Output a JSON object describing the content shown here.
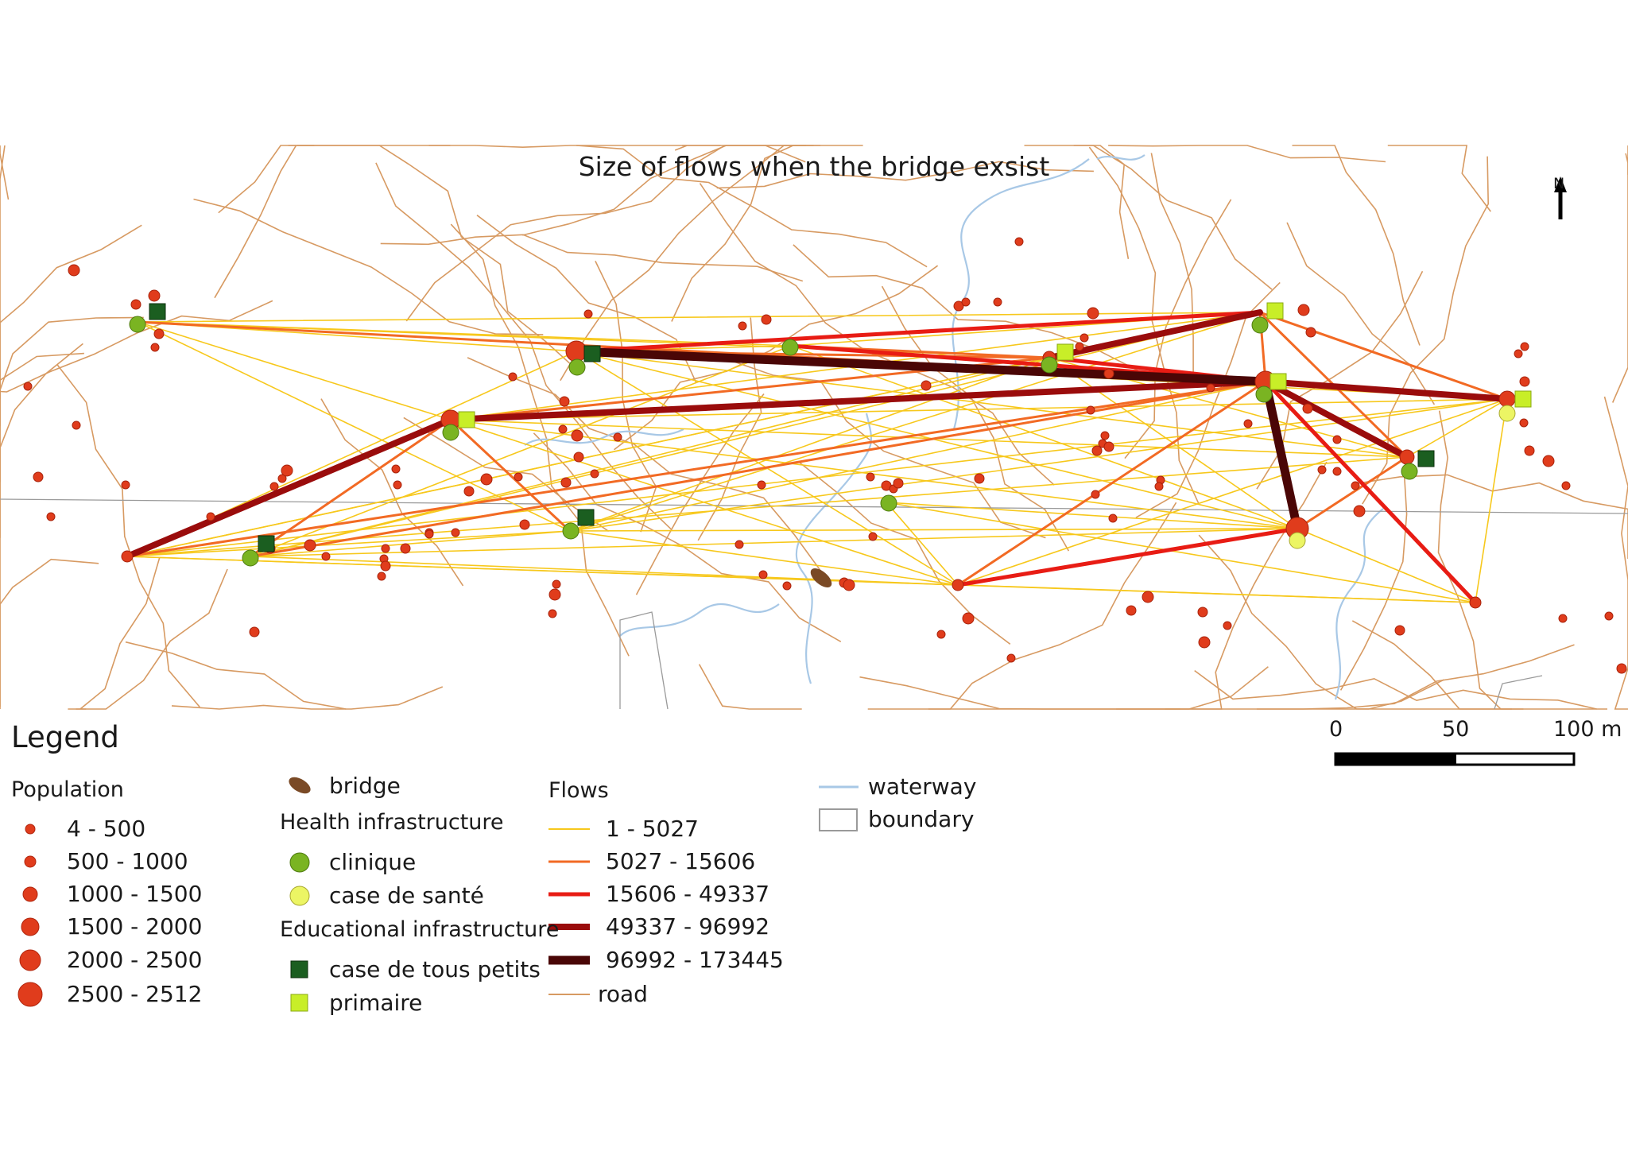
{
  "map_title": "Size of flows when the bridge exsist",
  "north_label": "N",
  "scale_bar": {
    "labels": [
      "0",
      "50",
      "100 m"
    ]
  },
  "legend": {
    "title": "Legend",
    "population": {
      "heading": "Population",
      "classes": [
        "4 - 500",
        "500 - 1000",
        "1000 - 1500",
        "1500 - 2000",
        "2000 - 2500",
        "2500 - 2512"
      ],
      "color": "#e03c1c"
    },
    "bridge": {
      "label": "bridge",
      "color": "#7a4a26"
    },
    "health": {
      "heading": "Health infrastructure",
      "items": [
        {
          "label": "clinique",
          "color": "#7ab422"
        },
        {
          "label": "case de santé",
          "color": "#ecf564"
        }
      ]
    },
    "education": {
      "heading": "Educational infrastructure",
      "items": [
        {
          "label": "case de tous petits",
          "color": "#1b5e20"
        },
        {
          "label": "primaire",
          "color": "#c8ee28"
        }
      ]
    },
    "flows": {
      "heading": "Flows",
      "classes": [
        {
          "label": "1 - 5027",
          "color": "#f7c81c"
        },
        {
          "label": "5027 - 15606",
          "color": "#f26a24"
        },
        {
          "label": "15606 - 49337",
          "color": "#e81c14"
        },
        {
          "label": "49337 - 96992",
          "color": "#9a0c0c"
        },
        {
          "label": "96992 - 173445",
          "color": "#4a0606"
        }
      ]
    },
    "road": {
      "label": "road",
      "color": "#d79a62"
    },
    "waterway": {
      "label": "waterway",
      "color": "#a8c8e6"
    },
    "boundary": {
      "label": "boundary",
      "color": "#9a9a9a"
    }
  }
}
